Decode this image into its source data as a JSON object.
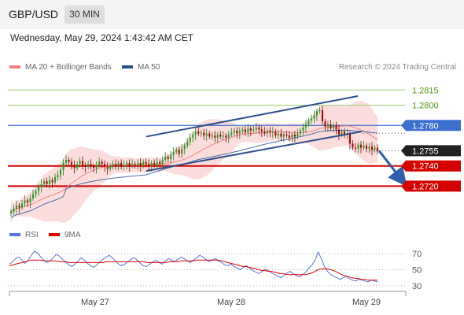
{
  "header": {
    "symbol": "GBP/USD",
    "timeframe": "30 MIN"
  },
  "timestamp": "Wednesday, May 29, 2024 1:43:42 AM CET",
  "legend": [
    {
      "label": "MA 20 + Bollinger Bands",
      "color": "#f08080"
    },
    {
      "label": "MA 50",
      "color": "#2c4f8c"
    }
  ],
  "credit": "Research © 2024 Trading Central",
  "rsi_legend": [
    {
      "label": "RSI",
      "color": "#5577dd"
    },
    {
      "label": "9MA",
      "color": "#dd0000"
    }
  ],
  "chart_data": [
    {
      "type": "candlestick",
      "x_ticks": [
        "May 27",
        "May 28",
        "May 29"
      ],
      "y_range": [
        1.269,
        1.283
      ],
      "levels": [
        {
          "label": "1.2815",
          "value": 1.2815,
          "kind": "resistance",
          "style": "green-thin"
        },
        {
          "label": "1.2800",
          "value": 1.28,
          "kind": "resistance",
          "style": "green-thin"
        },
        {
          "label": "1.2780",
          "value": 1.278,
          "kind": "pivot",
          "style": "blue-flag"
        },
        {
          "label": "1.2755",
          "value": 1.2755,
          "kind": "last-price",
          "style": "black-flag"
        },
        {
          "label": "1.2740",
          "value": 1.274,
          "kind": "support",
          "style": "red-flag"
        },
        {
          "label": "1.2720",
          "value": 1.272,
          "kind": "support",
          "style": "red-flag"
        }
      ],
      "close_path": [
        1.2695,
        1.2698,
        1.2701,
        1.2699,
        1.2703,
        1.2706,
        1.2704,
        1.2708,
        1.2712,
        1.2715,
        1.2719,
        1.2722,
        1.2725,
        1.2722,
        1.2726,
        1.2724,
        1.2729,
        1.2731,
        1.2736,
        1.2743,
        1.2746,
        1.2744,
        1.2741,
        1.2738,
        1.2742,
        1.2745,
        1.2741,
        1.2739,
        1.2742,
        1.274,
        1.2738,
        1.2741,
        1.2744,
        1.2742,
        1.2739,
        1.2737,
        1.274,
        1.2742,
        1.2741,
        1.2743,
        1.2739,
        1.2741,
        1.2743,
        1.274,
        1.2742,
        1.2741,
        1.2743,
        1.274,
        1.2744,
        1.2742,
        1.274,
        1.2743,
        1.2741,
        1.2744,
        1.2742,
        1.2746,
        1.2749,
        1.2747,
        1.2751,
        1.2754,
        1.2756,
        1.2752,
        1.2757,
        1.276,
        1.2764,
        1.2768,
        1.2771,
        1.2774,
        1.2772,
        1.2773,
        1.277,
        1.2772,
        1.2769,
        1.277,
        1.2768,
        1.2771,
        1.2769,
        1.277,
        1.2768,
        1.2771,
        1.2773,
        1.2775,
        1.2772,
        1.2774,
        1.2776,
        1.2773,
        1.2777,
        1.2775,
        1.2776,
        1.2778,
        1.2776,
        1.2774,
        1.2772,
        1.2775,
        1.2773,
        1.2774,
        1.277,
        1.2772,
        1.2769,
        1.2771,
        1.277,
        1.2768,
        1.2771,
        1.2769,
        1.2772,
        1.2775,
        1.2778,
        1.2781,
        1.2785,
        1.2787,
        1.279,
        1.2794,
        1.2795,
        1.2784,
        1.2779,
        1.2781,
        1.2777,
        1.278,
        1.2776,
        1.2771,
        1.2774,
        1.2771,
        1.2772,
        1.2762,
        1.2758,
        1.2757,
        1.2761,
        1.2758,
        1.276,
        1.2757,
        1.2759,
        1.2756,
        1.2758,
        1.2755
      ],
      "trend_lines": [
        {
          "from": [
            "May 28 -",
            1.2769
          ],
          "to": [
            "May 29 -",
            1.2809
          ],
          "name": "upper channel"
        },
        {
          "from": [
            "May 28 -",
            1.2735
          ],
          "to": [
            "May 29 +",
            1.2774
          ],
          "name": "lower channel"
        }
      ]
    },
    {
      "type": "line",
      "name": "RSI panel",
      "series": [
        {
          "name": "RSI",
          "color": "#5577dd"
        },
        {
          "name": "9MA",
          "color": "#dd0000"
        }
      ],
      "y_ticks": [
        "70",
        "50",
        "30"
      ],
      "y_range": [
        25,
        80
      ],
      "rsi": [
        57,
        60,
        64,
        66,
        62,
        58,
        62,
        68,
        73,
        71,
        66,
        62,
        59,
        61,
        65,
        69,
        67,
        63,
        60,
        56,
        54,
        57,
        61,
        65,
        62,
        58,
        55,
        53,
        56,
        60,
        63,
        66,
        68,
        65,
        61,
        57,
        55,
        57,
        60,
        63,
        65,
        62,
        58,
        55,
        54,
        57,
        60,
        62,
        59,
        57,
        61,
        64,
        62,
        60,
        63,
        66,
        64,
        61,
        59,
        62,
        65,
        68,
        66,
        63,
        60,
        62,
        64,
        61,
        59,
        56,
        55,
        57,
        54,
        52,
        50,
        53,
        55,
        52,
        49,
        47,
        45,
        48,
        51,
        49,
        46,
        44,
        42,
        40,
        43,
        46,
        48,
        45,
        43,
        41,
        44,
        47,
        52,
        56,
        62,
        72,
        64,
        54,
        48,
        44,
        42,
        40,
        38,
        40,
        42,
        39,
        37,
        36,
        38,
        37,
        36,
        35,
        37,
        36,
        35
      ],
      "ma9": [
        55,
        56,
        57,
        58,
        59,
        60,
        61,
        62,
        62,
        62,
        62,
        61,
        61,
        61,
        61,
        61,
        60,
        60,
        60,
        59,
        59,
        59,
        59,
        59,
        59,
        59,
        59,
        59,
        59,
        59,
        59,
        60,
        60,
        60,
        60,
        60,
        60,
        60,
        60,
        60,
        60,
        60,
        60,
        60,
        59,
        59,
        59,
        59,
        59,
        59,
        59,
        60,
        60,
        60,
        60,
        61,
        61,
        61,
        61,
        61,
        62,
        62,
        62,
        62,
        62,
        62,
        62,
        62,
        61,
        60,
        59,
        58,
        57,
        56,
        55,
        54,
        54,
        53,
        52,
        51,
        50,
        49,
        49,
        48,
        48,
        47,
        46,
        45,
        45,
        44,
        44,
        44,
        44,
        44,
        44,
        44,
        45,
        46,
        48,
        50,
        51,
        51,
        51,
        50,
        49,
        47,
        45,
        43,
        42,
        41,
        40,
        39,
        39,
        38,
        38,
        37,
        37,
        37,
        37
      ]
    }
  ]
}
